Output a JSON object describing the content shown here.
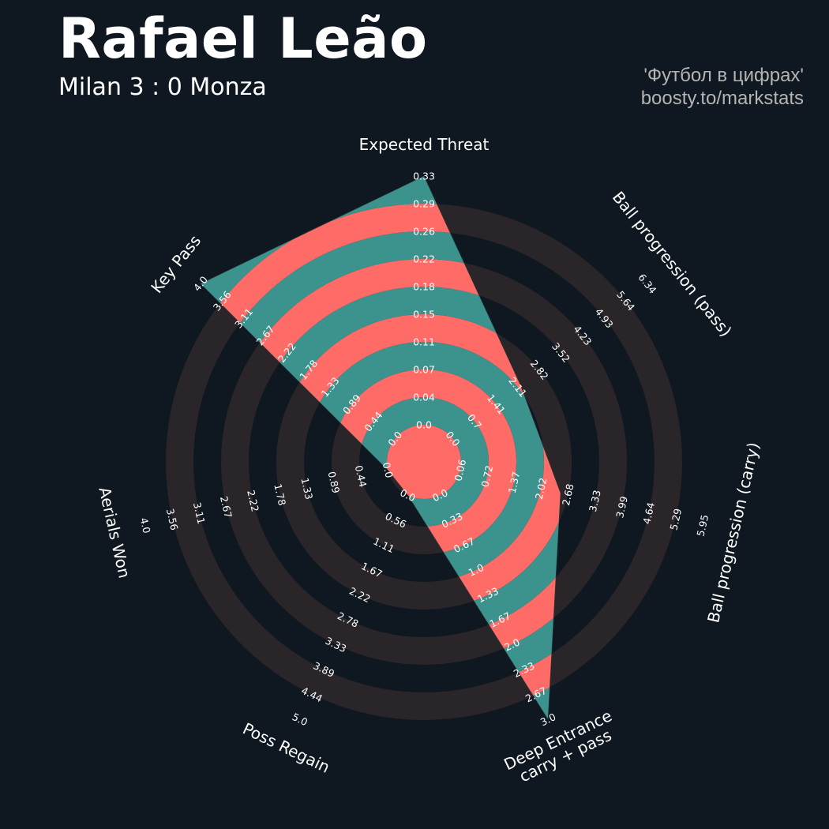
{
  "header": {
    "title": "Rafael Leão",
    "subtitle": "Milan 3 : 0 Monza",
    "credit_line1": "'Футбол в цифрах'",
    "credit_line2": "boosty.to/markstats"
  },
  "colors": {
    "background": "#0f1820",
    "ring_dark": "#2a2529",
    "fill_teal": "#3c928d",
    "fill_coral": "#ff6b67"
  },
  "chart_data": {
    "type": "radar",
    "title": "Rafael Leão",
    "subtitle": "Milan 3 : 0 Monza",
    "params": [
      {
        "label": "Expected Threat",
        "min": 0.0,
        "max": 0.33,
        "value": 0.33,
        "ticks": [
          "0.0",
          "0.04",
          "0.07",
          "0.11",
          "0.15",
          "0.18",
          "0.22",
          "0.26",
          "0.29",
          "0.33"
        ]
      },
      {
        "label": "Ball progression (pass)",
        "min": 0.0,
        "max": 6.34,
        "value": 2.2,
        "ticks": [
          "0.0",
          "0.7",
          "1.41",
          "2.11",
          "2.82",
          "3.52",
          "4.23",
          "4.93",
          "5.64",
          "6.34"
        ]
      },
      {
        "label": "Ball progression (carry)",
        "min": 0.06,
        "max": 5.95,
        "value": 2.5,
        "ticks": [
          "0.06",
          "0.72",
          "1.37",
          "2.02",
          "2.68",
          "3.33",
          "3.99",
          "4.64",
          "5.29",
          "5.95"
        ]
      },
      {
        "label": "Deep Entrance\ncarry + pass",
        "min": 0.0,
        "max": 3.0,
        "value": 3.0,
        "ticks": [
          "0.0",
          "0.33",
          "0.67",
          "1.0",
          "1.33",
          "1.67",
          "2.0",
          "2.33",
          "2.67",
          "3.0"
        ]
      },
      {
        "label": "Poss Regain",
        "min": 0.0,
        "max": 5.0,
        "value": 0.0,
        "ticks": [
          "0.0",
          "0.56",
          "1.11",
          "1.67",
          "2.22",
          "2.78",
          "3.33",
          "3.89",
          "4.44",
          "5.0"
        ]
      },
      {
        "label": "Aerials Won",
        "min": 0.0,
        "max": 4.0,
        "value": 0.0,
        "ticks": [
          "0.0",
          "0.44",
          "0.89",
          "1.33",
          "1.78",
          "2.22",
          "2.67",
          "3.11",
          "3.56",
          "4.0"
        ]
      },
      {
        "label": "Key Pass",
        "min": 0.0,
        "max": 4.0,
        "value": 4.0,
        "ticks": [
          "0.0",
          "0.44",
          "0.89",
          "1.33",
          "1.78",
          "2.22",
          "2.67",
          "3.11",
          "3.56",
          "4.0"
        ]
      }
    ],
    "grid": true
  }
}
